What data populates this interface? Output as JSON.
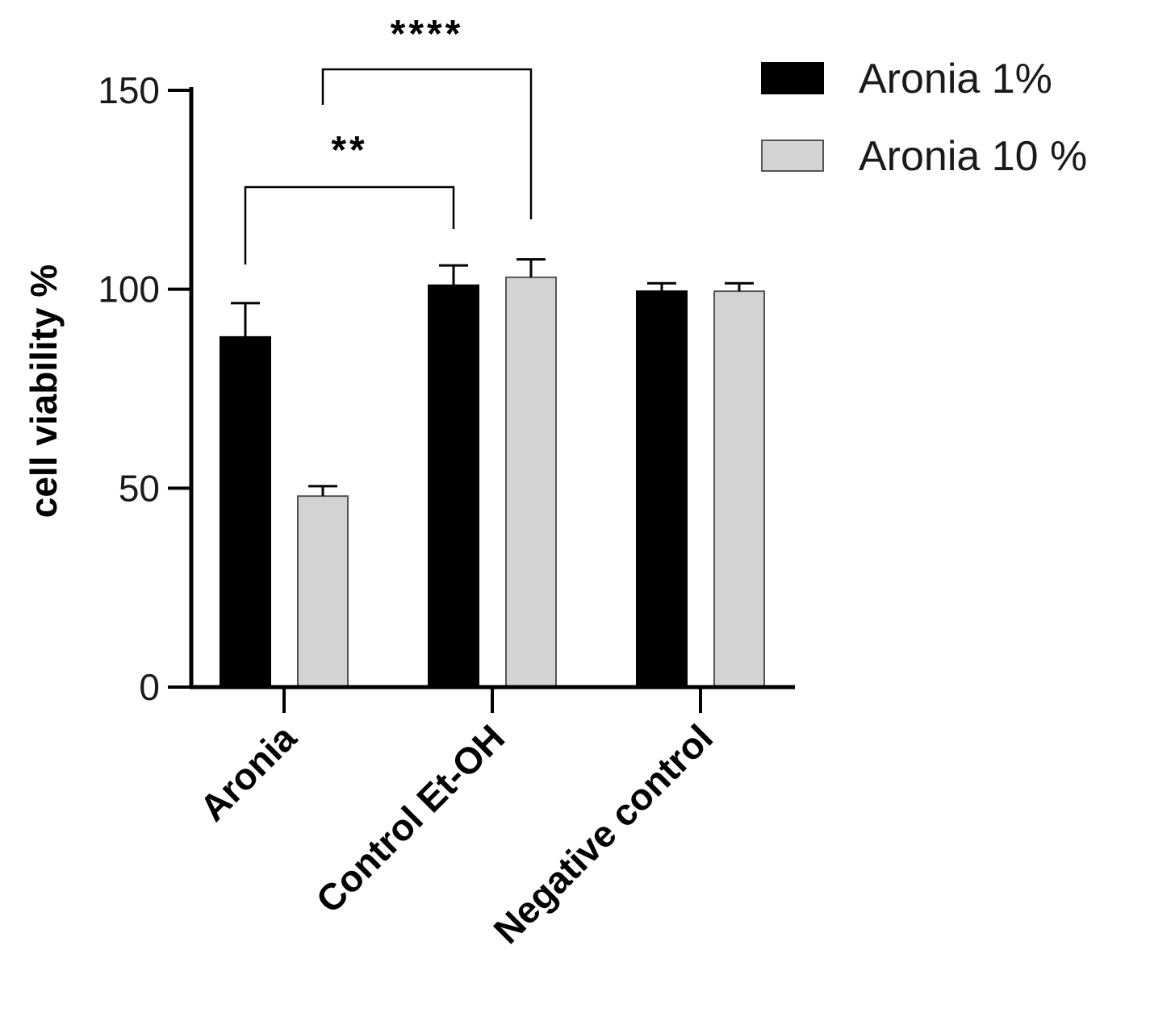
{
  "chart_data": {
    "type": "bar",
    "title": "",
    "xlabel": "",
    "ylabel": "cell viability %",
    "ylim": [
      0,
      150
    ],
    "yticks": [
      0,
      50,
      100,
      150
    ],
    "categories": [
      "Aronia",
      "Control Et-OH",
      "Negative control"
    ],
    "series": [
      {
        "name": "Aronia 1%",
        "color": "#000000",
        "values": [
          88,
          101,
          99.5
        ],
        "errors": [
          8.5,
          5,
          2
        ]
      },
      {
        "name": "Aronia 10 %",
        "color": "#d3d3d3",
        "values": [
          48,
          103,
          99.5
        ],
        "errors": [
          2.5,
          4.5,
          2
        ]
      }
    ],
    "legend_position": "top-right",
    "grid": false,
    "significance": [
      {
        "label": "**",
        "from": {
          "category": 0,
          "series": 0
        },
        "to": {
          "category": 1,
          "series": 0
        }
      },
      {
        "label": "****",
        "from": {
          "category": 0,
          "series": 1
        },
        "to": {
          "category": 1,
          "series": 1
        }
      }
    ]
  }
}
